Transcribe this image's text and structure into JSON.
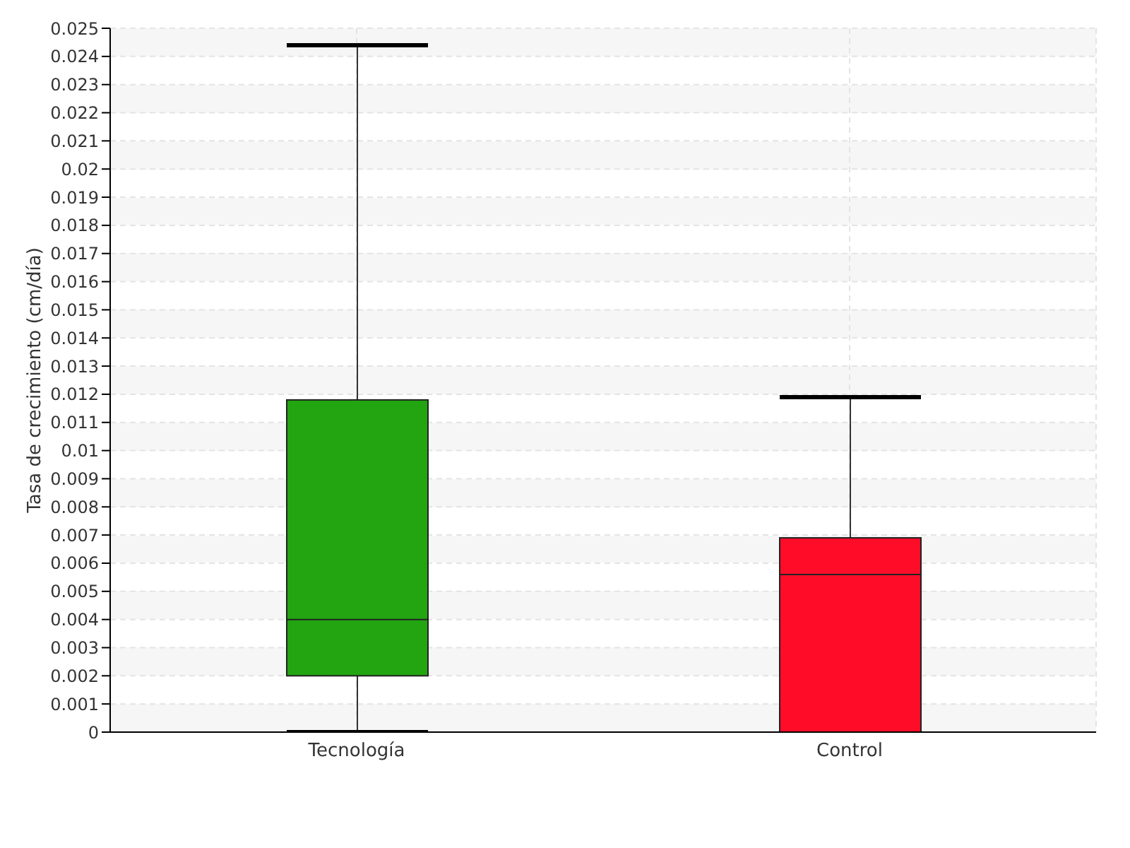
{
  "chart_data": {
    "type": "box",
    "ylabel": "Tasa de crecimiento (cm/día)",
    "categories": [
      "Tecnología",
      "Control"
    ],
    "boxes": [
      {
        "low": 0,
        "q1": 0.002,
        "median": 0.004,
        "q3": 0.0118,
        "high": 0.0244
      },
      {
        "low": 0,
        "q1": 0,
        "median": 0.0056,
        "q3": 0.0069,
        "high": 0.0119
      }
    ],
    "colors": [
      "#22a511",
      "#ff0d28"
    ],
    "ylim": [
      0,
      0.025
    ],
    "yticks": [
      0,
      0.001,
      0.002,
      0.003,
      0.004,
      0.005,
      0.006,
      0.007,
      0.008,
      0.009,
      0.01,
      0.011,
      0.012,
      0.013,
      0.014,
      0.015,
      0.016,
      0.017,
      0.018,
      0.019,
      0.02,
      0.021,
      0.022,
      0.023,
      0.024,
      0.025
    ],
    "grid": true
  }
}
